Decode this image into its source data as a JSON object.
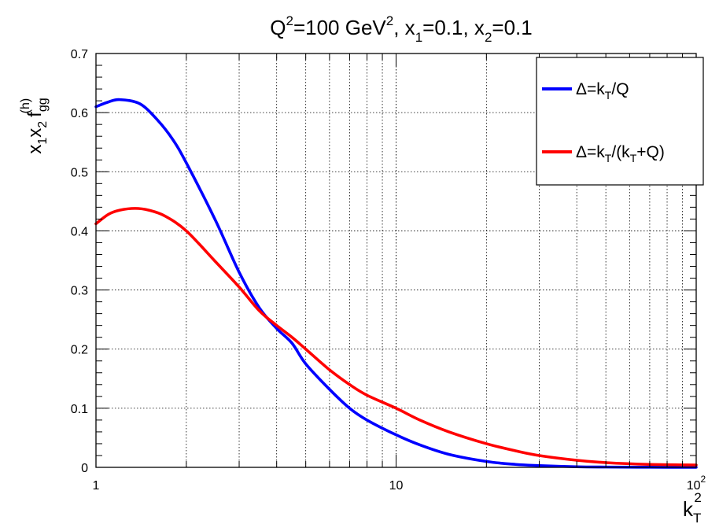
{
  "chart_data": {
    "type": "line",
    "title": "Q^2=100 GeV^2, x_1=0.1, x_2=0.1",
    "title_parts": {
      "q": "Q",
      "q_exp": "2",
      "eq1": "=100 GeV",
      "gev_exp": "2",
      "x1": ", x",
      "x1_sub": "1",
      "x1_val": "=0.1",
      "x2": ", x",
      "x2_sub": "2",
      "x2_val": "=0.1"
    },
    "xlabel": "k_T^2",
    "xlabel_parts": {
      "k": "k",
      "sub": "T",
      "sup": "2"
    },
    "ylabel": "x_1x_2 f_gg^(h)",
    "ylabel_parts": {
      "x": "x",
      "s1": "1",
      "x2": "x",
      "s2": "2",
      "f": "f",
      "fsub": "gg",
      "fsup": "(h)"
    },
    "x_scale": "log",
    "xlim": [
      1,
      100
    ],
    "ylim": [
      0,
      0.7
    ],
    "grid": true,
    "x_ticks": [
      {
        "value": 1,
        "label": "1"
      },
      {
        "value": 10,
        "label": "10"
      },
      {
        "value": 100,
        "label": "10",
        "exp": "2"
      }
    ],
    "y_ticks": [
      "0",
      "0.1",
      "0.2",
      "0.3",
      "0.4",
      "0.5",
      "0.6",
      "0.7"
    ],
    "legend_position": "top-right",
    "series": [
      {
        "name": "Δ=k_T/Q",
        "legend_parts": {
          "a": "Δ=k",
          "sub": "T",
          "b": "/Q"
        },
        "color": "#0000ff",
        "x": [
          1,
          1.1,
          1.2,
          1.4,
          1.6,
          1.8,
          2,
          2.5,
          3,
          3.5,
          4,
          4.5,
          5,
          6,
          7,
          8,
          10,
          12,
          15,
          20,
          25,
          30,
          40,
          50,
          70,
          100
        ],
        "y": [
          0.61,
          0.618,
          0.622,
          0.615,
          0.588,
          0.555,
          0.515,
          0.418,
          0.33,
          0.27,
          0.235,
          0.21,
          0.175,
          0.132,
          0.1,
          0.08,
          0.055,
          0.038,
          0.022,
          0.01,
          0.005,
          0.003,
          0.001,
          0.0005,
          0.0002,
          0.0001
        ]
      },
      {
        "name": "Δ=k_T/(k_T+Q)",
        "legend_parts": {
          "a": "Δ=k",
          "sub": "T",
          "b": "/(k",
          "sub2": "T",
          "c": "+Q)"
        },
        "color": "#ff0000",
        "x": [
          1,
          1.1,
          1.2,
          1.35,
          1.5,
          1.7,
          2,
          2.5,
          3,
          3.5,
          4,
          4.5,
          5,
          6,
          7,
          8,
          10,
          12,
          15,
          20,
          25,
          30,
          40,
          50,
          70,
          100
        ],
        "y": [
          0.412,
          0.428,
          0.435,
          0.438,
          0.435,
          0.425,
          0.4,
          0.348,
          0.305,
          0.265,
          0.24,
          0.22,
          0.2,
          0.165,
          0.14,
          0.122,
          0.1,
          0.08,
          0.06,
          0.04,
          0.028,
          0.02,
          0.012,
          0.008,
          0.005,
          0.004
        ]
      }
    ]
  }
}
